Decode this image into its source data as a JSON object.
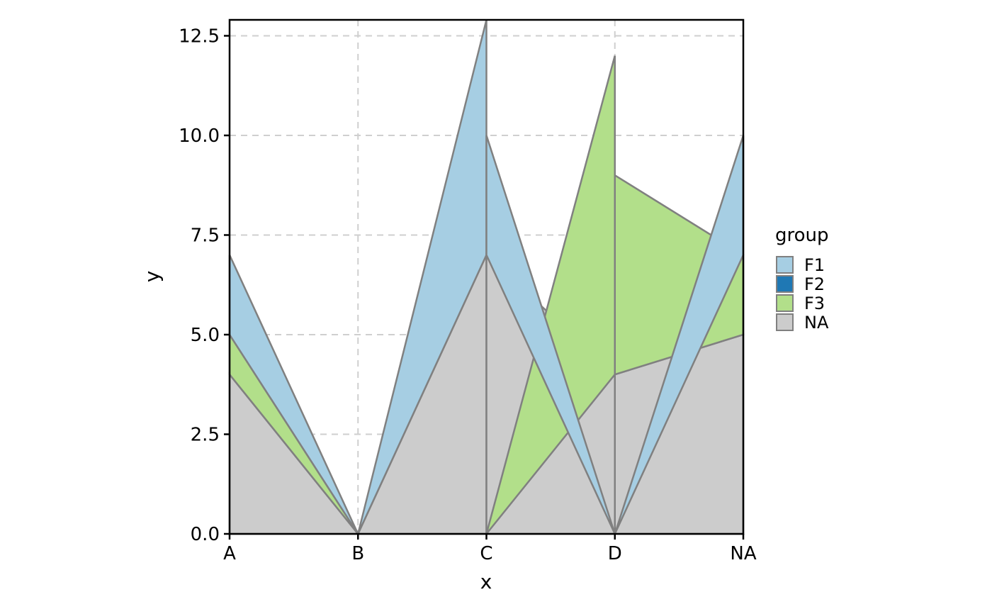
{
  "chart_data": {
    "type": "area",
    "title": "",
    "xlabel": "x",
    "ylabel": "y",
    "categories": [
      "A",
      "B",
      "C",
      "D",
      "NA"
    ],
    "ylim": [
      0,
      12.9
    ],
    "yticks": [
      "0.0",
      "2.5",
      "5.0",
      "7.5",
      "10.0",
      "12.5"
    ],
    "ytick_values": [
      0,
      2.5,
      5,
      7.5,
      10,
      12.5
    ],
    "grid": "dashed",
    "legend": {
      "title": "group",
      "placement": "right"
    },
    "series": [
      {
        "name": "NA",
        "color": "#cccccc",
        "values": [
          4,
          0,
          7,
          4,
          5
        ]
      },
      {
        "name": "F3",
        "color": "#b2df8a",
        "values": [
          1,
          0,
          0,
          8,
          2
        ]
      },
      {
        "name": "F2",
        "color": "#1f78b4",
        "values": [
          0,
          0,
          0,
          0,
          0
        ]
      },
      {
        "name": "F1",
        "color": "#a6cee3",
        "values": [
          2,
          0,
          3,
          0,
          3
        ]
      }
    ],
    "segments": [
      {
        "x": 0,
        "stack": [
          {
            "group": "NA",
            "from": 0,
            "to": 4
          },
          {
            "group": "F3",
            "from": 4,
            "to": 5
          },
          {
            "group": "F1",
            "from": 5,
            "to": 7
          }
        ]
      },
      {
        "x": 1,
        "stack": []
      },
      {
        "x": 2,
        "stack_left": [
          {
            "group": "NA",
            "from": 0,
            "to": 7
          },
          {
            "group": "F1",
            "from": 7,
            "to": 12.9
          }
        ],
        "stack_right": [
          {
            "group": "NA",
            "from": 0,
            "to": 7
          },
          {
            "group": "F1",
            "from": 7,
            "to": 10
          }
        ]
      },
      {
        "x": 3,
        "stack_left": [
          {
            "group": "NA",
            "from": 0,
            "to": 4
          },
          {
            "group": "F3",
            "from": 4,
            "to": 12
          }
        ],
        "stack_right": [
          {
            "group": "NA",
            "from": 0,
            "to": 4
          },
          {
            "group": "F3",
            "from": 4,
            "to": 9
          }
        ]
      },
      {
        "x": 4,
        "stack": [
          {
            "group": "NA",
            "from": 0,
            "to": 5
          },
          {
            "group": "F3",
            "from": 5,
            "to": 7
          },
          {
            "group": "F1",
            "from": 7,
            "to": 10
          }
        ]
      }
    ]
  },
  "legend_items": [
    {
      "label": "F1",
      "color": "#a6cee3"
    },
    {
      "label": "F2",
      "color": "#1f78b4"
    },
    {
      "label": "F3",
      "color": "#b2df8a"
    },
    {
      "label": "NA",
      "color": "#cccccc"
    }
  ]
}
